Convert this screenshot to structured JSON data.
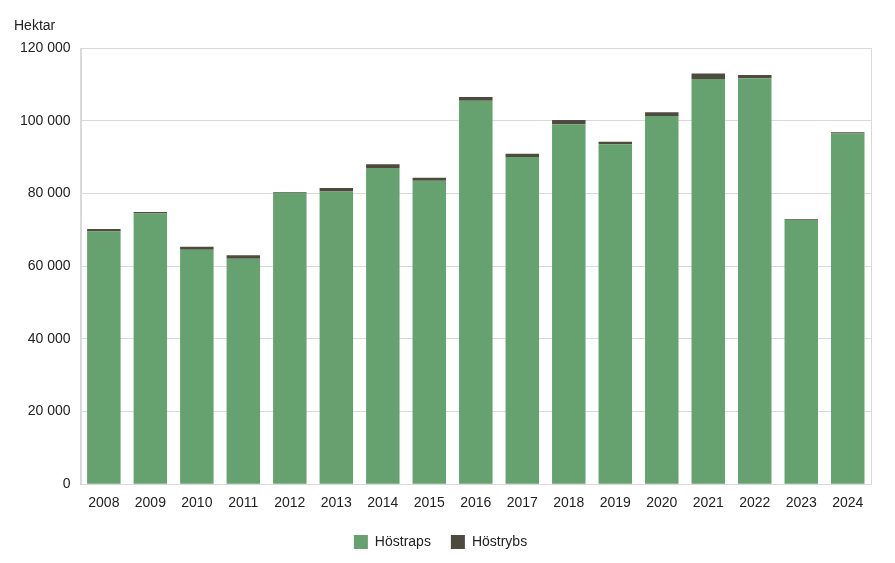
{
  "chart_data": {
    "type": "bar",
    "ylabel": "Hektar",
    "categories": [
      "2008",
      "2009",
      "2010",
      "2011",
      "2012",
      "2013",
      "2014",
      "2015",
      "2016",
      "2017",
      "2018",
      "2019",
      "2020",
      "2021",
      "2022",
      "2023",
      "2024"
    ],
    "series": [
      {
        "name": "Höstraps",
        "color": "#66a170",
        "values": [
          69500,
          74500,
          64500,
          62000,
          80200,
          80500,
          87000,
          83500,
          105500,
          90000,
          99000,
          93500,
          101300,
          111500,
          111700,
          72700,
          96500
        ]
      },
      {
        "name": "Höstrybs",
        "color": "#4f4a3e",
        "values": [
          700,
          400,
          800,
          1000,
          200,
          1000,
          1000,
          800,
          1000,
          900,
          1200,
          700,
          1000,
          1500,
          900,
          200,
          300
        ]
      }
    ],
    "ylim": [
      0,
      120000
    ],
    "yticks": [
      {
        "value": 0,
        "label": "0"
      },
      {
        "value": 20000,
        "label": "20 000"
      },
      {
        "value": 40000,
        "label": "40 000"
      },
      {
        "value": 60000,
        "label": "60 000"
      },
      {
        "value": 80000,
        "label": "80 000"
      },
      {
        "value": 100000,
        "label": "100 000"
      },
      {
        "value": 120000,
        "label": "120 000"
      }
    ],
    "stacked": true,
    "grid": true,
    "legend": "bottom"
  }
}
